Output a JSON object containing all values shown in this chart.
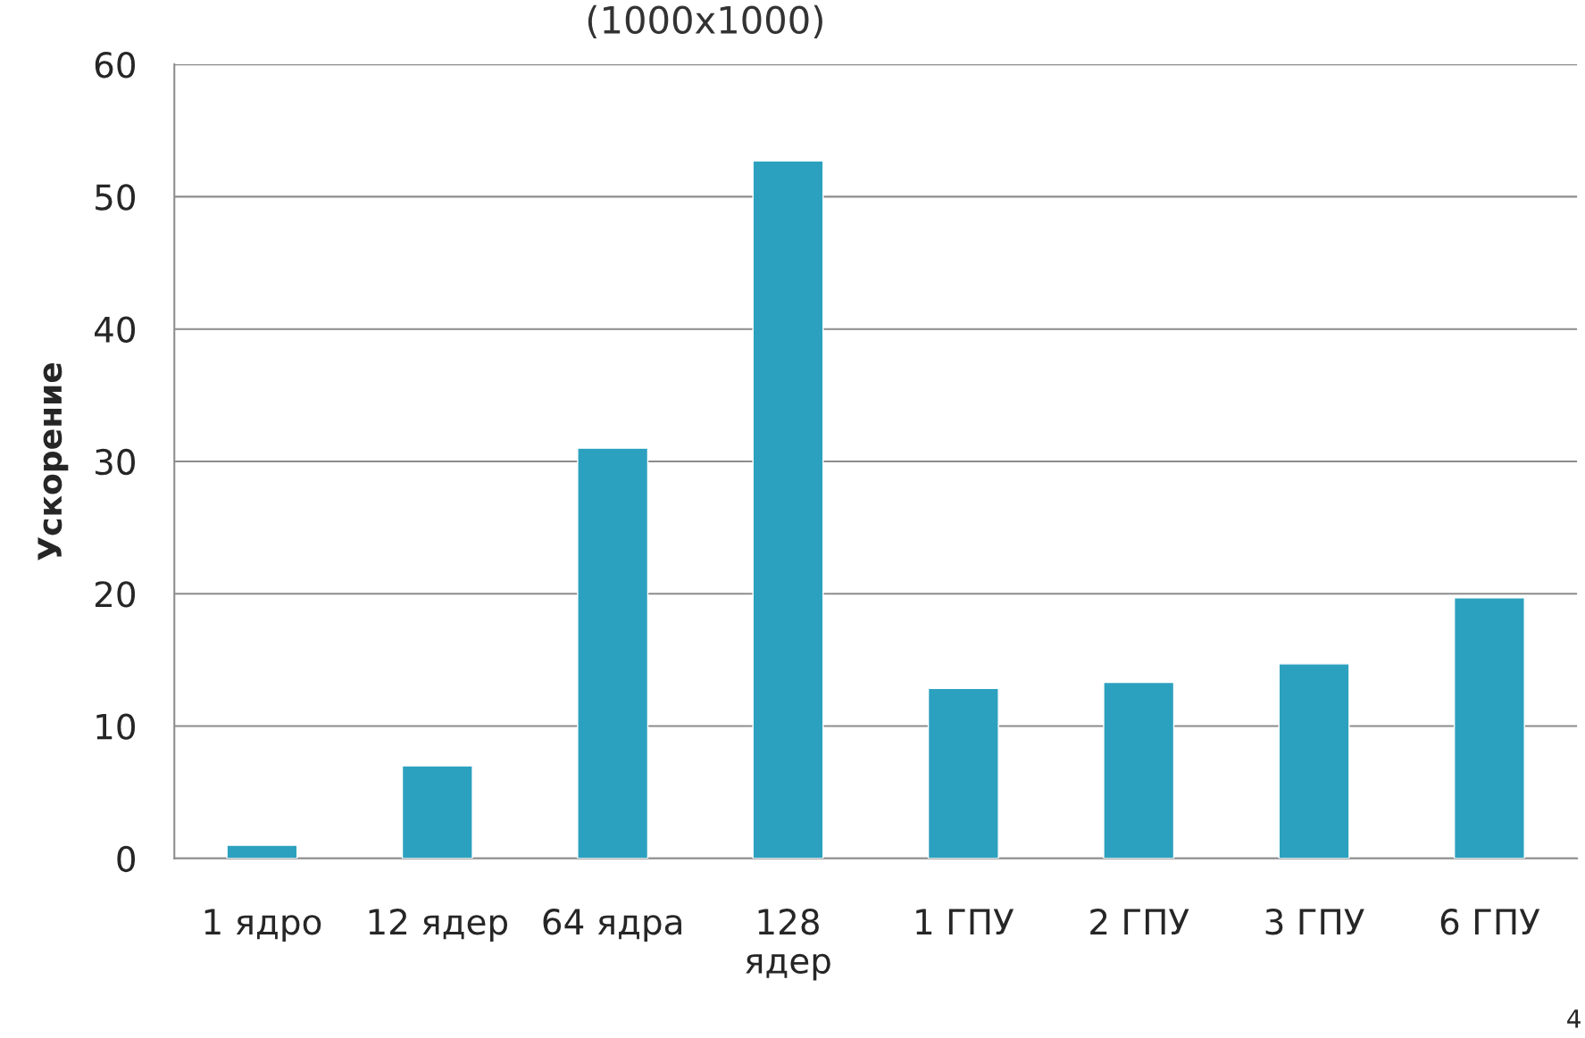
{
  "chart_data": {
    "type": "bar",
    "title": "(1000x1000)",
    "ylabel": "Ускорение",
    "categories": [
      "1 ядро",
      "12 ядер",
      "64 ядра",
      "128\nядер",
      "1 ГПУ",
      "2 ГПУ",
      "3 ГПУ",
      "6 ГПУ"
    ],
    "values": [
      1,
      7,
      31,
      52.7,
      12.85,
      13.3,
      14.7,
      19.7
    ],
    "color": "#2ca1bf",
    "ylim": [
      0,
      60
    ],
    "yticks": [
      0,
      10,
      20,
      30,
      40,
      50,
      60
    ],
    "grid": "y",
    "annotations": [
      "4"
    ]
  }
}
